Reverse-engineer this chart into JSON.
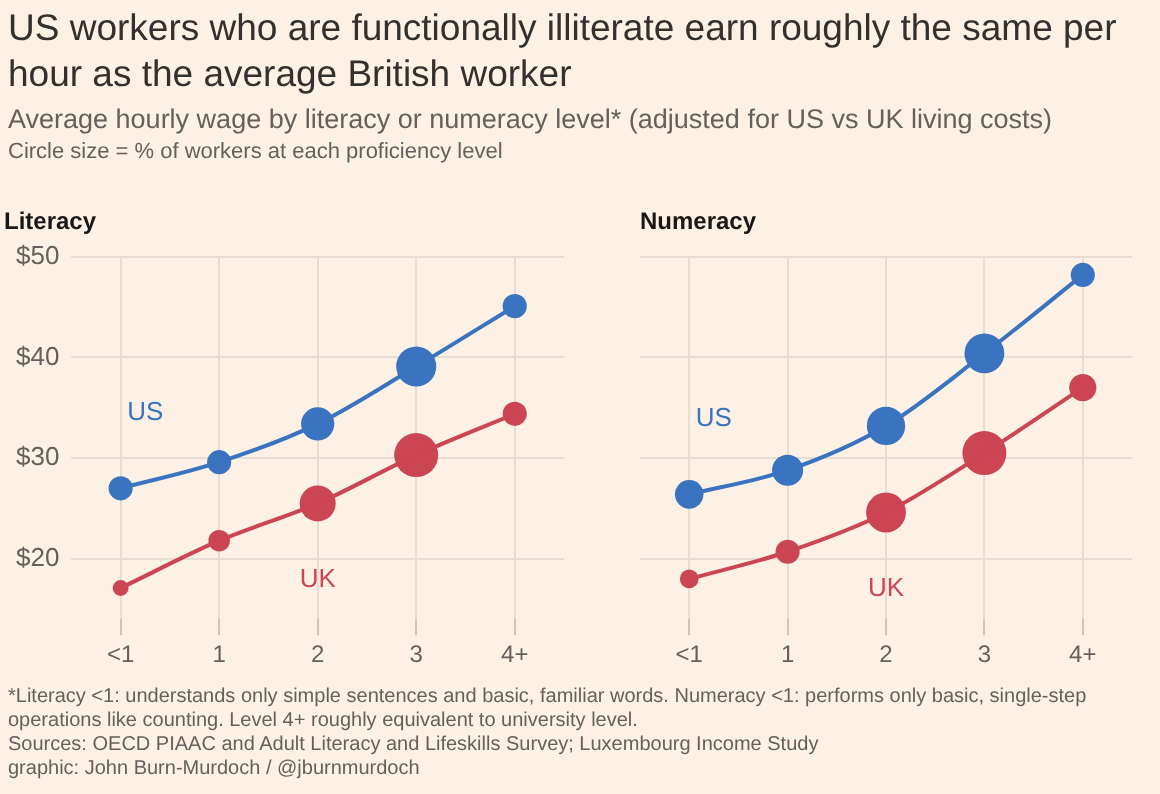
{
  "chart_data": [
    {
      "type": "other",
      "title": "US workers who are functionally illiterate earn roughly the same per hour as the average British worker",
      "subtitle": "Average hourly wage by literacy or numeracy level* (adjusted for US vs UK living costs)",
      "annotations": [
        "Circle size = % of workers at each proficiency level",
        "*Literacy <1: understands only simple sentences and basic, familiar words. Numeracy <1: performs only basic, single-step operations like counting. Level 4+ roughly equivalent to university level.",
        "Sources: OECD PIAAC and Adult Literacy and Lifeskills Survey; Luxembourg Income Study",
        "graphic: John Burn-Murdoch / @jburnmurdoch"
      ]
    },
    {
      "type": "bubble",
      "title": "Literacy",
      "categories": [
        "<1",
        "1",
        "2",
        "3",
        "4+"
      ],
      "series": [
        {
          "name": "US",
          "color": "#3a73bf",
          "marker": "circle",
          "values": [
            27.0,
            29.6,
            33.4,
            39.1,
            45.1
          ],
          "sizes": [
            0.3,
            0.3,
            0.57,
            0.83,
            0.3
          ]
        },
        {
          "name": "UK",
          "color": "#cc4552",
          "marker": "circle",
          "values": [
            17.1,
            21.8,
            25.5,
            30.3,
            34.4
          ],
          "sizes": [
            0.13,
            0.24,
            0.67,
            1.0,
            0.3
          ]
        },
        {
          "type": "line",
          "color": "#3a73bf",
          "values": [
            27.0,
            29.6,
            33.4,
            39.1,
            45.1
          ]
        },
        {
          "type": "line",
          "color": "#cc4552",
          "values": [
            17.1,
            21.8,
            25.5,
            30.3,
            34.4
          ]
        }
      ],
      "ylim": [
        14,
        50
      ],
      "yticks": [
        {
          "value": 20,
          "label": "$20"
        },
        {
          "value": 30,
          "label": "$30"
        },
        {
          "value": 40,
          "label": "$40"
        },
        {
          "value": 50,
          "label": "$50"
        }
      ],
      "grid": true,
      "line_style": "solid"
    },
    {
      "type": "bubble",
      "title": "Numeracy",
      "categories": [
        "<1",
        "1",
        "2",
        "3",
        "4+"
      ],
      "series": [
        {
          "name": "US",
          "color": "#3a73bf",
          "marker": "circle",
          "values": [
            26.4,
            28.8,
            33.2,
            40.4,
            48.2
          ],
          "sizes": [
            0.42,
            0.5,
            0.76,
            0.82,
            0.3
          ]
        },
        {
          "name": "UK",
          "color": "#cc4552",
          "marker": "circle",
          "values": [
            18.0,
            20.7,
            24.6,
            30.5,
            37.0
          ],
          "sizes": [
            0.18,
            0.3,
            0.82,
            1.0,
            0.38
          ]
        },
        {
          "type": "line",
          "color": "#3a73bf",
          "values": [
            26.4,
            28.8,
            33.2,
            40.4,
            48.2
          ]
        },
        {
          "type": "line",
          "color": "#cc4552",
          "values": [
            18.0,
            20.7,
            24.6,
            30.5,
            37.0
          ]
        }
      ],
      "ylim": [
        14,
        50
      ],
      "yticks": [
        20,
        30,
        40,
        50
      ],
      "grid": true,
      "line_style": "solid",
      "tick_labels": "x"
    }
  ]
}
